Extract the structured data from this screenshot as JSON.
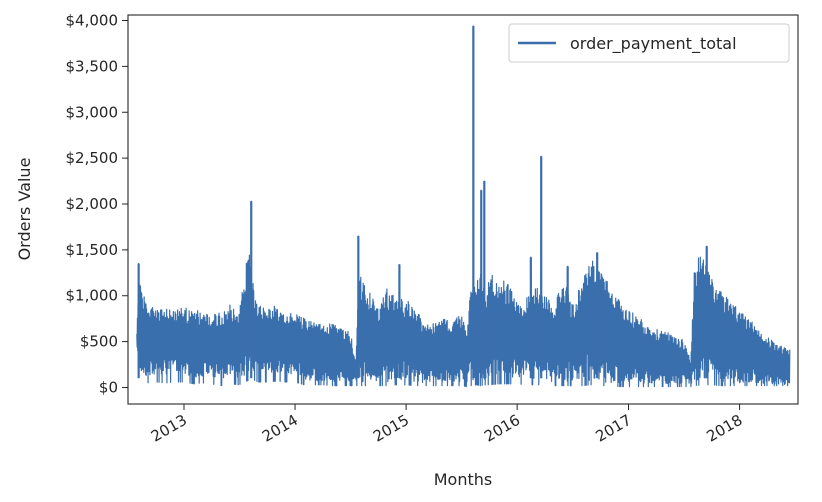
{
  "chart_data": {
    "type": "line",
    "title": "",
    "xlabel": "Months",
    "ylabel": "Orders Value",
    "x_range": [
      "2012-07-01",
      "2018-07-12"
    ],
    "ylim": [
      -180,
      4060
    ],
    "y_ticks": [
      0,
      500,
      1000,
      1500,
      2000,
      2500,
      3000,
      3500,
      4000
    ],
    "y_tick_labels": [
      "$0",
      "$500",
      "$1,000",
      "$1,500",
      "$2,000",
      "$2,500",
      "$3,000",
      "$3,500",
      "$4,000"
    ],
    "x_ticks": [
      "2013-01-01",
      "2014-01-01",
      "2015-01-01",
      "2016-01-01",
      "2017-01-01",
      "2018-01-01"
    ],
    "x_tick_labels": [
      "2013",
      "2014",
      "2015",
      "2016",
      "2017",
      "2018"
    ],
    "x_tick_rotation": -30,
    "grid": false,
    "legend_position": "top-right",
    "line_color": "#3a6fad",
    "series": [
      {
        "name": "order_payment_total",
        "envelope": {
          "x": [
            "2012-07-30",
            "2012-08-05",
            "2012-08-15",
            "2012-09-01",
            "2012-10-01",
            "2012-11-01",
            "2012-12-01",
            "2013-01-01",
            "2013-02-01",
            "2013-03-01",
            "2013-04-01",
            "2013-05-01",
            "2013-06-01",
            "2013-07-01",
            "2013-08-01",
            "2013-08-10",
            "2013-08-20",
            "2013-09-01",
            "2013-10-01",
            "2013-11-01",
            "2013-12-01",
            "2014-01-01",
            "2014-02-01",
            "2014-03-01",
            "2014-04-01",
            "2014-05-01",
            "2014-06-01",
            "2014-07-01",
            "2014-07-20",
            "2014-07-28",
            "2014-08-10",
            "2014-09-01",
            "2014-10-01",
            "2014-11-01",
            "2014-12-01",
            "2015-01-01",
            "2015-02-01",
            "2015-03-01",
            "2015-04-01",
            "2015-05-01",
            "2015-06-01",
            "2015-07-01",
            "2015-07-20",
            "2015-08-01",
            "2015-08-20",
            "2015-09-01",
            "2015-09-20",
            "2015-10-01",
            "2015-11-01",
            "2015-12-01",
            "2016-01-01",
            "2016-02-01",
            "2016-03-01",
            "2016-03-25",
            "2016-04-10",
            "2016-05-01",
            "2016-06-01",
            "2016-07-01",
            "2016-08-01",
            "2016-09-01",
            "2016-10-01",
            "2016-11-01",
            "2016-12-01",
            "2017-01-01",
            "2017-02-01",
            "2017-03-01",
            "2017-04-01",
            "2017-05-01",
            "2017-06-01",
            "2017-07-01",
            "2017-07-25",
            "2017-08-05",
            "2017-09-01",
            "2017-10-01",
            "2017-11-01",
            "2017-12-01",
            "2018-01-01",
            "2018-02-01",
            "2018-03-01",
            "2018-04-01",
            "2018-05-01",
            "2018-06-01",
            "2018-06-15"
          ],
          "high": [
            600,
            1350,
            1100,
            900,
            880,
            860,
            840,
            900,
            820,
            860,
            780,
            820,
            900,
            860,
            1500,
            1350,
            1000,
            900,
            850,
            900,
            800,
            820,
            760,
            720,
            680,
            700,
            640,
            620,
            300,
            1250,
            1180,
            1050,
            850,
            1100,
            950,
            980,
            820,
            760,
            700,
            760,
            700,
            820,
            600,
            1250,
            1100,
            1300,
            1000,
            1250,
            1200,
            1150,
            1000,
            980,
            1100,
            1050,
            1000,
            900,
            1180,
            920,
            1150,
            1400,
            1300,
            1100,
            950,
            850,
            780,
            700,
            640,
            620,
            560,
            520,
            300,
            1350,
            1500,
            1250,
            1050,
            950,
            850,
            750,
            650,
            550,
            480,
            430,
            420
          ],
          "low": [
            400,
            80,
            150,
            130,
            150,
            120,
            150,
            150,
            110,
            120,
            130,
            90,
            130,
            100,
            150,
            220,
            180,
            160,
            160,
            170,
            150,
            150,
            80,
            70,
            70,
            60,
            60,
            50,
            50,
            50,
            60,
            60,
            50,
            60,
            80,
            80,
            60,
            50,
            50,
            50,
            50,
            50,
            40,
            60,
            80,
            60,
            70,
            80,
            90,
            100,
            90,
            80,
            80,
            80,
            70,
            60,
            60,
            60,
            70,
            80,
            60,
            50,
            50,
            50,
            50,
            40,
            40,
            40,
            40,
            30,
            30,
            50,
            80,
            80,
            60,
            50,
            50,
            50,
            50,
            40,
            40,
            30,
            30
          ],
          "min": [
            200,
            30,
            60,
            50,
            60,
            50,
            60,
            60,
            40,
            50,
            40,
            20,
            40,
            30,
            80,
            120,
            80,
            60,
            60,
            70,
            60,
            60,
            30,
            30,
            30,
            20,
            20,
            20,
            20,
            20,
            20,
            20,
            20,
            20,
            30,
            30,
            20,
            20,
            20,
            20,
            20,
            20,
            10,
            20,
            30,
            20,
            30,
            30,
            40,
            40,
            40,
            30,
            30,
            30,
            20,
            20,
            20,
            20,
            20,
            30,
            20,
            20,
            10,
            10,
            10,
            10,
            10,
            10,
            10,
            10,
            10,
            20,
            30,
            30,
            20,
            20,
            20,
            20,
            20,
            20,
            20,
            20,
            20
          ]
        },
        "spikes": [
          {
            "x": "2012-08-05",
            "y": 1350
          },
          {
            "x": "2013-08-10",
            "y": 2030
          },
          {
            "x": "2014-07-28",
            "y": 1650
          },
          {
            "x": "2014-12-10",
            "y": 1340
          },
          {
            "x": "2015-08-10",
            "y": 3940
          },
          {
            "x": "2015-09-15",
            "y": 2250
          },
          {
            "x": "2015-09-05",
            "y": 2150
          },
          {
            "x": "2016-02-15",
            "y": 1420
          },
          {
            "x": "2016-03-20",
            "y": 2520
          },
          {
            "x": "2016-06-15",
            "y": 1320
          },
          {
            "x": "2016-09-20",
            "y": 1470
          },
          {
            "x": "2017-09-15",
            "y": 1540
          }
        ]
      }
    ]
  }
}
